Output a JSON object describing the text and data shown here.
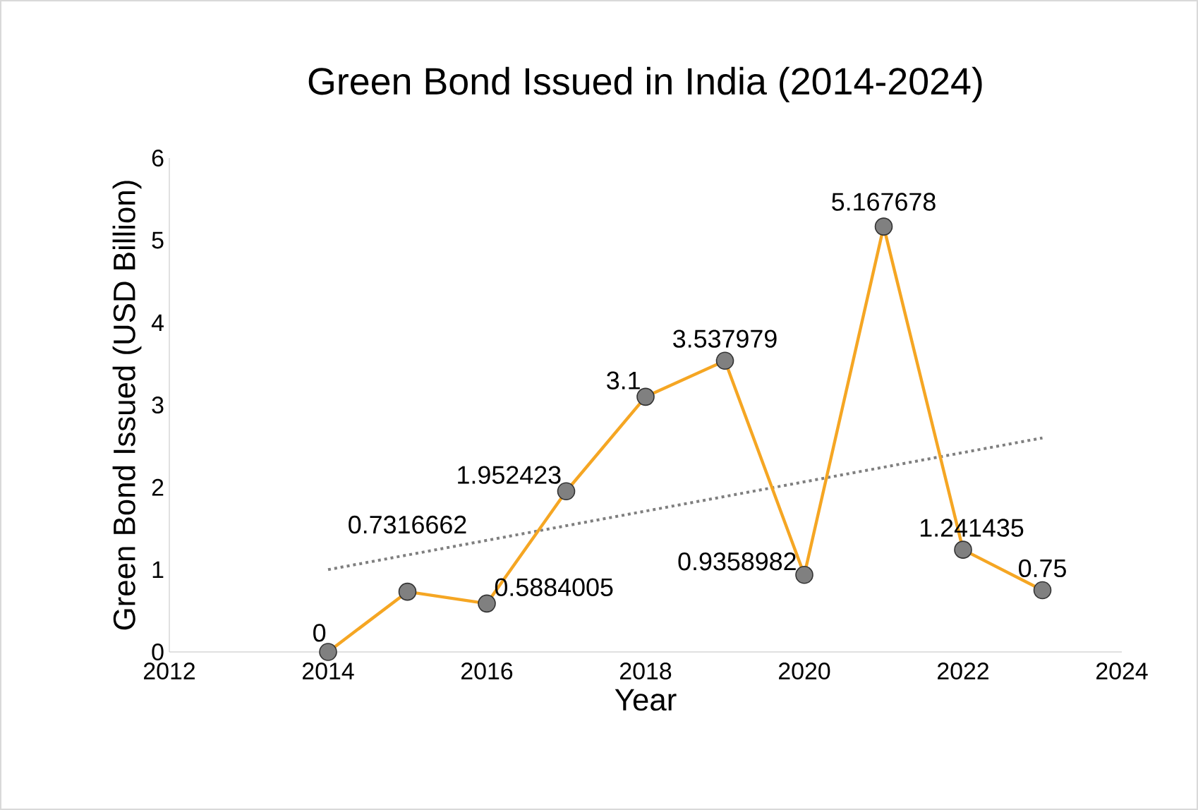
{
  "chart_data": {
    "type": "line",
    "title": "Green Bond Issued in India (2014-2024)",
    "xlabel": "Year",
    "ylabel": "Green Bond Issued (USD Billion)",
    "xlim": [
      2012,
      2024
    ],
    "xticks": [
      2012,
      2014,
      2016,
      2018,
      2020,
      2022,
      2024
    ],
    "ylim": [
      0,
      6
    ],
    "yticks": [
      0,
      1,
      2,
      3,
      4,
      5,
      6
    ],
    "marker": "circle",
    "series": [
      {
        "color": "#f5a623",
        "x": [
          2014,
          2015,
          2016,
          2017,
          2018,
          2019,
          2020,
          2021,
          2022,
          2023
        ],
        "values": [
          0,
          0.7316662,
          0.5884005,
          1.952423,
          3.1,
          3.537979,
          0.9358982,
          5.167678,
          1.241435,
          0.75
        ],
        "data_labels": true,
        "line_style": "solid"
      },
      {
        "type": "line",
        "color": "#7f7f7f",
        "x": [
          2014,
          2023
        ],
        "values": [
          1.0,
          2.6
        ],
        "marker": "none",
        "line_style": "dotted"
      }
    ]
  }
}
